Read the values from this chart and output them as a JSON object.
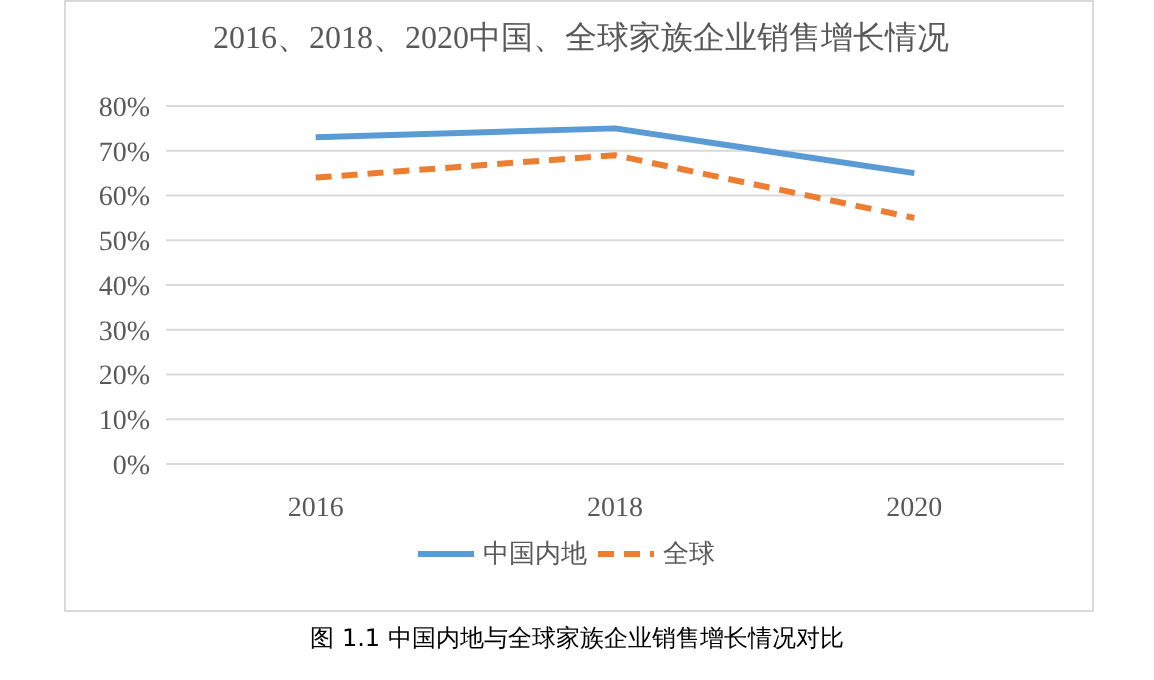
{
  "chart_data": {
    "type": "line",
    "title": "2016、2018、2020中国、全球家族企业销售增长情况",
    "categories": [
      "2016",
      "2018",
      "2020"
    ],
    "series": [
      {
        "name": "中国内地",
        "color": "#5b9bd5",
        "values": [
          73,
          75,
          65
        ],
        "line_style": "solid"
      },
      {
        "name": "全球",
        "color": "#ed7d31",
        "values": [
          64,
          69,
          55
        ],
        "line_style": "dashed"
      }
    ],
    "ylim": [
      0,
      80
    ],
    "yticks": [
      {
        "value": 0,
        "label": "0%"
      },
      {
        "value": 10,
        "label": "10%"
      },
      {
        "value": 20,
        "label": "20%"
      },
      {
        "value": 30,
        "label": "30%"
      },
      {
        "value": 40,
        "label": "40%"
      },
      {
        "value": 50,
        "label": "50%"
      },
      {
        "value": 60,
        "label": "60%"
      },
      {
        "value": 70,
        "label": "70%"
      },
      {
        "value": 80,
        "label": "80%"
      }
    ],
    "grid": "y",
    "legend": "bottom",
    "marker": "none",
    "annotations": [
      "图 1.1  中国内地与全球家族企业销售增长情况对比"
    ]
  }
}
